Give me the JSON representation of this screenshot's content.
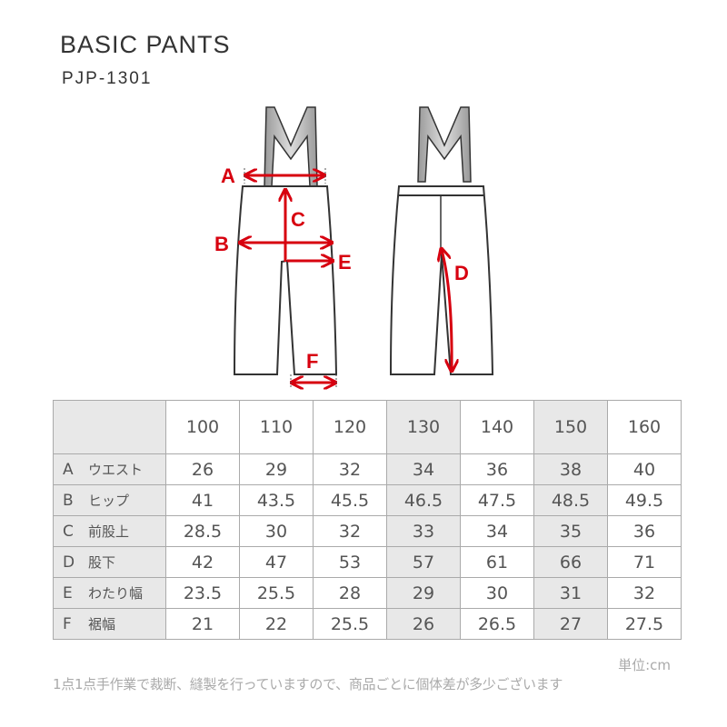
{
  "title": "BASIC PANTS",
  "code": "PJP-1301",
  "diagram_labels": {
    "a": "A",
    "b": "B",
    "c": "C",
    "d": "D",
    "e": "E",
    "f": "F"
  },
  "accent": "#d7000f",
  "table": {
    "sizes": [
      "100",
      "110",
      "120",
      "130",
      "140",
      "150",
      "160"
    ],
    "rows": [
      {
        "letter": "A",
        "name": "ウエスト",
        "values": [
          "26",
          "29",
          "32",
          "34",
          "36",
          "38",
          "40"
        ]
      },
      {
        "letter": "B",
        "name": "ヒップ",
        "values": [
          "41",
          "43.5",
          "45.5",
          "46.5",
          "47.5",
          "48.5",
          "49.5"
        ]
      },
      {
        "letter": "C",
        "name": "前股上",
        "values": [
          "28.5",
          "30",
          "32",
          "33",
          "34",
          "35",
          "36"
        ]
      },
      {
        "letter": "D",
        "name": "股下",
        "values": [
          "42",
          "47",
          "53",
          "57",
          "61",
          "66",
          "71"
        ]
      },
      {
        "letter": "E",
        "name": "わたり幅",
        "values": [
          "23.5",
          "25.5",
          "28",
          "29",
          "30",
          "31",
          "32"
        ]
      },
      {
        "letter": "F",
        "name": "裾幅",
        "values": [
          "21",
          "22",
          "25.5",
          "26",
          "26.5",
          "27",
          "27.5"
        ]
      }
    ]
  },
  "unit": "単位:cm",
  "note": "1点1点手作業で裁断、縫製を行っていますので、商品ごとに個体差が多少ございます"
}
